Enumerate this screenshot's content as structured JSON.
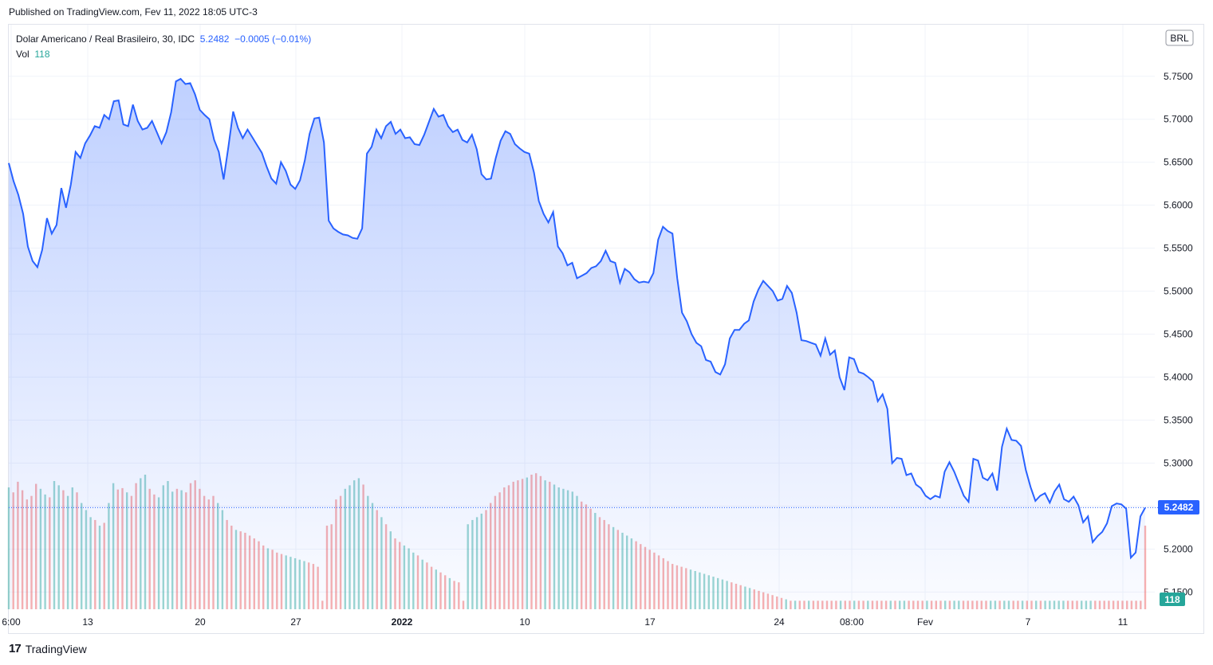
{
  "header": {
    "published": "Published on TradingView.com, Fev 11, 2022 18:05 UTC-3"
  },
  "legend": {
    "symbol": "Dolar Americano / Real Brasileiro, 30, IDC",
    "last": "5.2482",
    "change": "−0.0005 (−0.01%)",
    "vol_label": "Vol",
    "vol_value": "118"
  },
  "currency_button": "BRL",
  "footer": {
    "brand": "TradingView"
  },
  "colors": {
    "line": "#2962ff",
    "up": "#26a69a",
    "down": "#ef5350",
    "grid": "#f0f3fa"
  },
  "chart_data": {
    "type": "area",
    "ylim": [
      5.13,
      5.81
    ],
    "y_ticks": [
      "5.7500",
      "5.7000",
      "5.6500",
      "5.6000",
      "5.5500",
      "5.5000",
      "5.4500",
      "5.4000",
      "5.3500",
      "5.3000",
      "5.2500",
      "5.2000",
      "5.1500"
    ],
    "x_ticks": [
      "6:00",
      "13",
      "20",
      "27",
      "2022",
      "10",
      "17",
      "24",
      "08:00",
      "Fev",
      "7",
      "11"
    ],
    "last_price": "5.2482",
    "last_volume": "118",
    "price": [
      5.649,
      5.628,
      5.612,
      5.59,
      5.552,
      5.535,
      5.528,
      5.548,
      5.585,
      5.567,
      5.577,
      5.62,
      5.597,
      5.624,
      5.662,
      5.655,
      5.672,
      5.681,
      5.692,
      5.69,
      5.705,
      5.7,
      5.721,
      5.722,
      5.694,
      5.692,
      5.717,
      5.698,
      5.688,
      5.69,
      5.698,
      5.685,
      5.672,
      5.685,
      5.708,
      5.744,
      5.747,
      5.741,
      5.742,
      5.729,
      5.711,
      5.705,
      5.7,
      5.676,
      5.662,
      5.63,
      5.668,
      5.709,
      5.69,
      5.678,
      5.688,
      5.679,
      5.67,
      5.661,
      5.645,
      5.631,
      5.625,
      5.65,
      5.64,
      5.624,
      5.619,
      5.629,
      5.652,
      5.683,
      5.701,
      5.702,
      5.673,
      5.582,
      5.573,
      5.569,
      5.566,
      5.565,
      5.562,
      5.561,
      5.573,
      5.66,
      5.668,
      5.688,
      5.678,
      5.692,
      5.697,
      5.683,
      5.688,
      5.678,
      5.679,
      5.671,
      5.67,
      5.682,
      5.697,
      5.712,
      5.703,
      5.705,
      5.692,
      5.685,
      5.688,
      5.676,
      5.673,
      5.682,
      5.665,
      5.636,
      5.63,
      5.631,
      5.655,
      5.675,
      5.686,
      5.683,
      5.671,
      5.666,
      5.662,
      5.66,
      5.638,
      5.605,
      5.59,
      5.58,
      5.592,
      5.552,
      5.544,
      5.53,
      5.533,
      5.515,
      5.518,
      5.521,
      5.527,
      5.529,
      5.535,
      5.547,
      5.535,
      5.533,
      5.51,
      5.526,
      5.522,
      5.514,
      5.51,
      5.511,
      5.51,
      5.521,
      5.56,
      5.575,
      5.57,
      5.567,
      5.515,
      5.475,
      5.465,
      5.45,
      5.44,
      5.436,
      5.42,
      5.418,
      5.406,
      5.403,
      5.415,
      5.445,
      5.455,
      5.455,
      5.462,
      5.466,
      5.488,
      5.502,
      5.512,
      5.506,
      5.5,
      5.489,
      5.491,
      5.506,
      5.498,
      5.475,
      5.443,
      5.442,
      5.44,
      5.438,
      5.425,
      5.445,
      5.426,
      5.431,
      5.4,
      5.385,
      5.423,
      5.421,
      5.406,
      5.404,
      5.4,
      5.395,
      5.372,
      5.38,
      5.363,
      5.3,
      5.306,
      5.305,
      5.286,
      5.288,
      5.275,
      5.271,
      5.262,
      5.258,
      5.262,
      5.26,
      5.29,
      5.301,
      5.29,
      5.276,
      5.262,
      5.255,
      5.305,
      5.303,
      5.283,
      5.28,
      5.288,
      5.268,
      5.319,
      5.34,
      5.327,
      5.326,
      5.32,
      5.292,
      5.272,
      5.256,
      5.262,
      5.265,
      5.254,
      5.267,
      5.275,
      5.258,
      5.255,
      5.261,
      5.251,
      5.231,
      5.238,
      5.208,
      5.215,
      5.22,
      5.23,
      5.25,
      5.253,
      5.252,
      5.247,
      5.19,
      5.196,
      5.238,
      5.2482
    ],
    "volume": [
      172,
      165,
      180,
      168,
      155,
      160,
      177,
      170,
      162,
      158,
      181,
      175,
      168,
      160,
      172,
      165,
      150,
      140,
      130,
      126,
      118,
      122,
      150,
      178,
      169,
      171,
      165,
      160,
      178,
      185,
      190,
      170,
      162,
      158,
      175,
      181,
      166,
      170,
      168,
      165,
      178,
      182,
      170,
      160,
      155,
      160,
      150,
      140,
      126,
      118,
      112,
      110,
      108,
      104,
      100,
      96,
      90,
      86,
      84,
      80,
      78,
      76,
      74,
      72,
      70,
      68,
      66,
      64,
      60,
      12,
      118,
      120,
      155,
      160,
      170,
      175,
      182,
      185,
      176,
      160,
      150,
      140,
      130,
      120,
      110,
      100,
      95,
      90,
      86,
      80,
      76,
      70,
      66,
      60,
      56,
      52,
      48,
      44,
      40,
      38,
      12,
      120,
      126,
      130,
      135,
      140,
      150,
      160,
      165,
      172,
      175,
      180,
      182,
      184,
      186,
      190,
      192,
      188,
      182,
      180,
      176,
      172,
      170,
      168,
      166,
      160,
      152,
      148,
      142,
      136,
      130,
      126,
      120,
      116,
      112,
      108,
      104,
      100,
      96,
      92,
      88,
      84,
      80,
      76,
      72,
      68,
      64,
      62,
      60,
      58,
      56,
      54,
      52,
      50,
      48,
      46,
      44,
      42,
      40,
      38,
      36,
      34,
      32,
      30,
      28,
      26,
      24,
      22,
      20,
      18,
      16,
      14,
      12,
      12,
      12,
      12,
      12,
      12,
      12,
      12,
      12,
      12,
      12,
      12,
      12,
      12,
      12,
      12,
      12,
      12,
      12,
      12,
      12,
      12,
      12,
      12,
      12,
      12,
      12,
      12,
      12,
      12,
      12,
      12,
      12,
      12,
      12,
      12,
      12,
      12,
      12,
      12,
      12,
      12,
      12,
      12,
      12,
      12,
      12,
      12,
      12,
      12,
      12,
      12,
      12,
      12,
      12,
      12,
      12,
      12,
      12,
      12,
      12,
      12,
      12,
      12,
      12,
      12,
      12,
      12,
      12,
      12,
      12,
      12,
      12,
      12,
      12,
      12,
      12,
      12,
      118
    ]
  }
}
